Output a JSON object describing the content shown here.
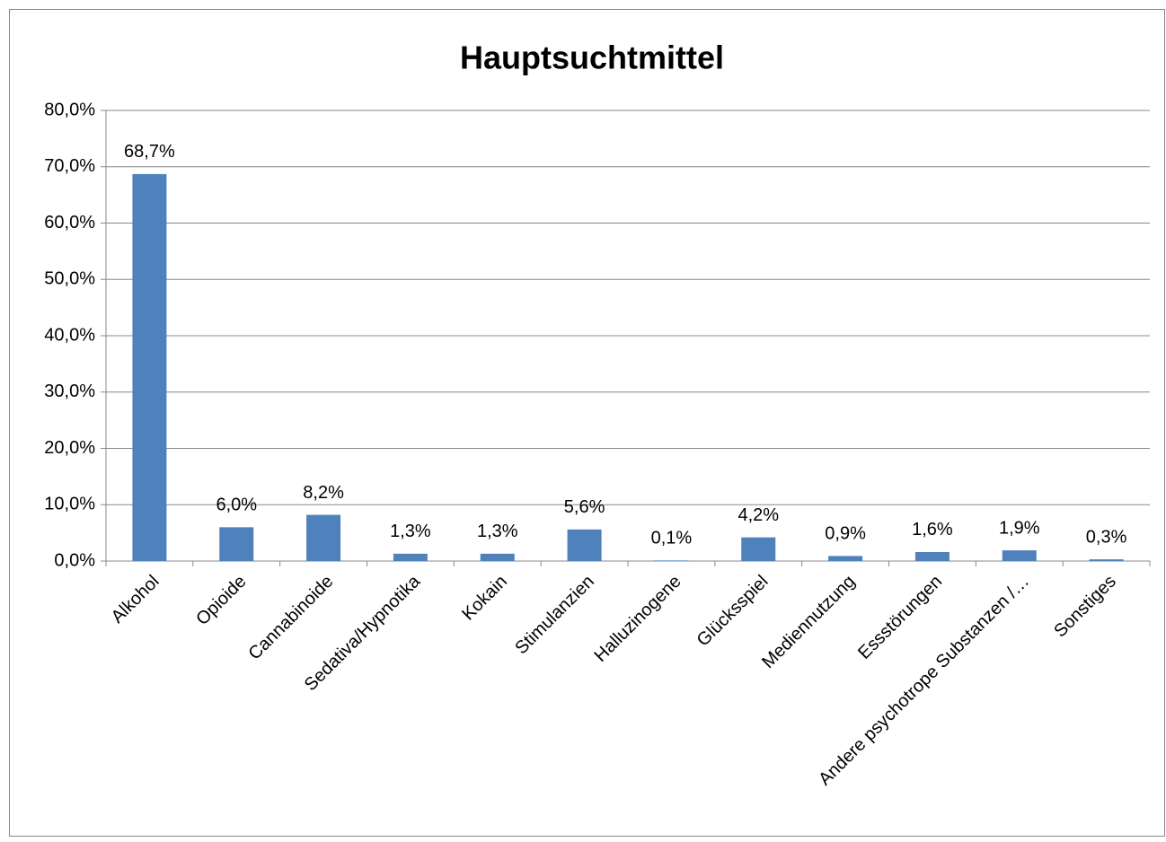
{
  "chart_data": {
    "type": "bar",
    "title": "Hauptsuchtmittel",
    "categories": [
      "Alkohol",
      "Opioide",
      "Cannabinoide",
      "Sedativa/Hypnotika",
      "Kokain",
      "Stimulanzien",
      "Halluzinogene",
      "Glücksspiel",
      "Mediennutzung",
      "Essstörungen",
      "Andere psychotrope Substanzen /…",
      "Sonstiges"
    ],
    "values": [
      68.7,
      6.0,
      8.2,
      1.3,
      1.3,
      5.6,
      0.1,
      4.2,
      0.9,
      1.6,
      1.9,
      0.3
    ],
    "value_labels": [
      "68,7%",
      "6,0%",
      "8,2%",
      "1,3%",
      "1,3%",
      "5,6%",
      "0,1%",
      "4,2%",
      "0,9%",
      "1,6%",
      "1,9%",
      "0,3%"
    ],
    "color": "#4f81bd",
    "ylim": [
      0,
      80
    ],
    "yticks": [
      {
        "value": 0,
        "label": "0,0%"
      },
      {
        "value": 10,
        "label": "10,0%"
      },
      {
        "value": 20,
        "label": "20,0%"
      },
      {
        "value": 30,
        "label": "30,0%"
      },
      {
        "value": 40,
        "label": "40,0%"
      },
      {
        "value": 50,
        "label": "50,0%"
      },
      {
        "value": 60,
        "label": "60,0%"
      },
      {
        "value": 70,
        "label": "70,0%"
      },
      {
        "value": 80,
        "label": "80,0%"
      }
    ],
    "grid": true
  }
}
